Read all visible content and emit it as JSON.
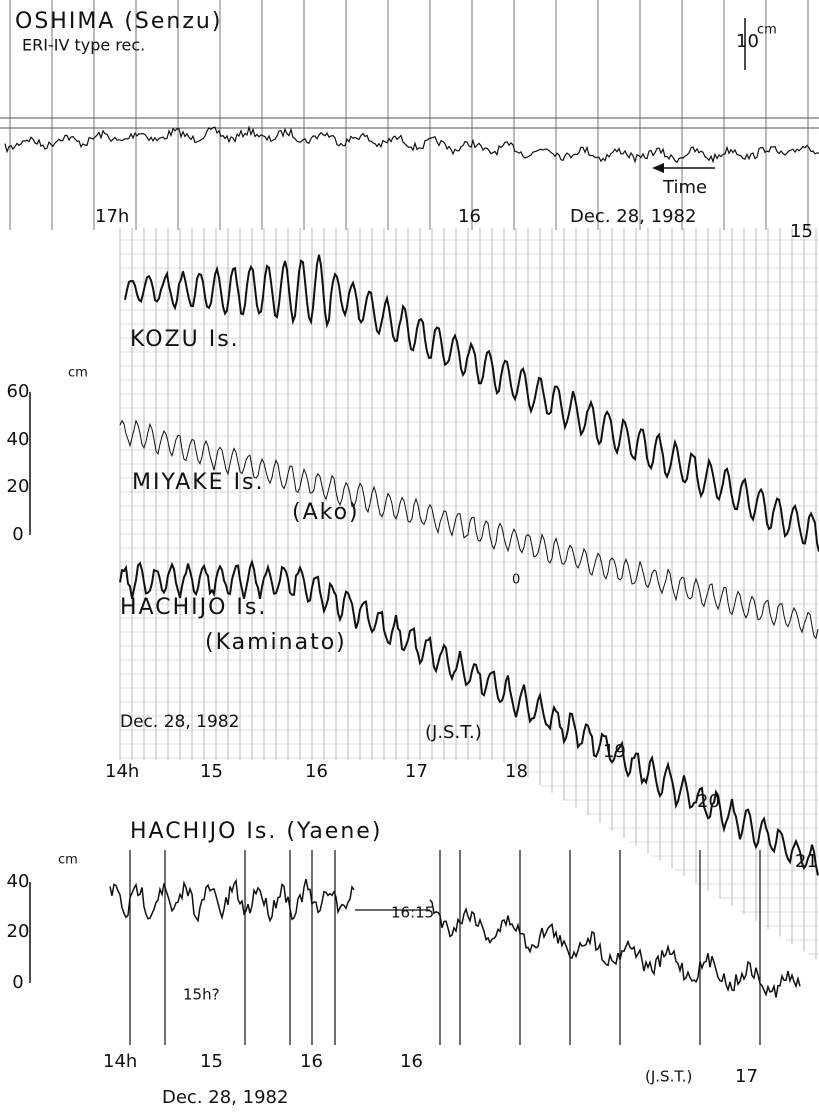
{
  "oshima": {
    "title": "OSHIMA (Senzu)",
    "recorder": "ERI-IV type rec.",
    "scale_value": "10",
    "scale_unit": "cm",
    "arrow_label": "Time",
    "times": [
      "17h",
      "16",
      "15"
    ],
    "date": "Dec. 28, 1982"
  },
  "middle": {
    "kozu": "KOZU Is.",
    "miyake": "MIYAKE Is.",
    "miyake_site": "(Ako)",
    "hachijo": "HACHIJO Is.",
    "hachijo_site": "(Kaminato)",
    "date": "Dec. 28, 1982",
    "zone": "(J.S.T.)",
    "zero_mark": "0",
    "scale": {
      "unit": "cm",
      "labels": [
        "60",
        "40",
        "20",
        "0"
      ]
    },
    "times": [
      "14h",
      "15",
      "16",
      "17",
      "18",
      "19",
      "20",
      "21"
    ]
  },
  "yaene": {
    "title": "HACHIJO Is. (Yaene)",
    "scale": {
      "unit": "cm",
      "labels": [
        "40",
        "20",
        "0"
      ]
    },
    "gap_time": "16:15",
    "note": "15h?",
    "times": [
      "14h",
      "15",
      "16",
      "16",
      "17"
    ],
    "zone": "(J.S.T.)",
    "date": "Dec. 28, 1982"
  }
}
